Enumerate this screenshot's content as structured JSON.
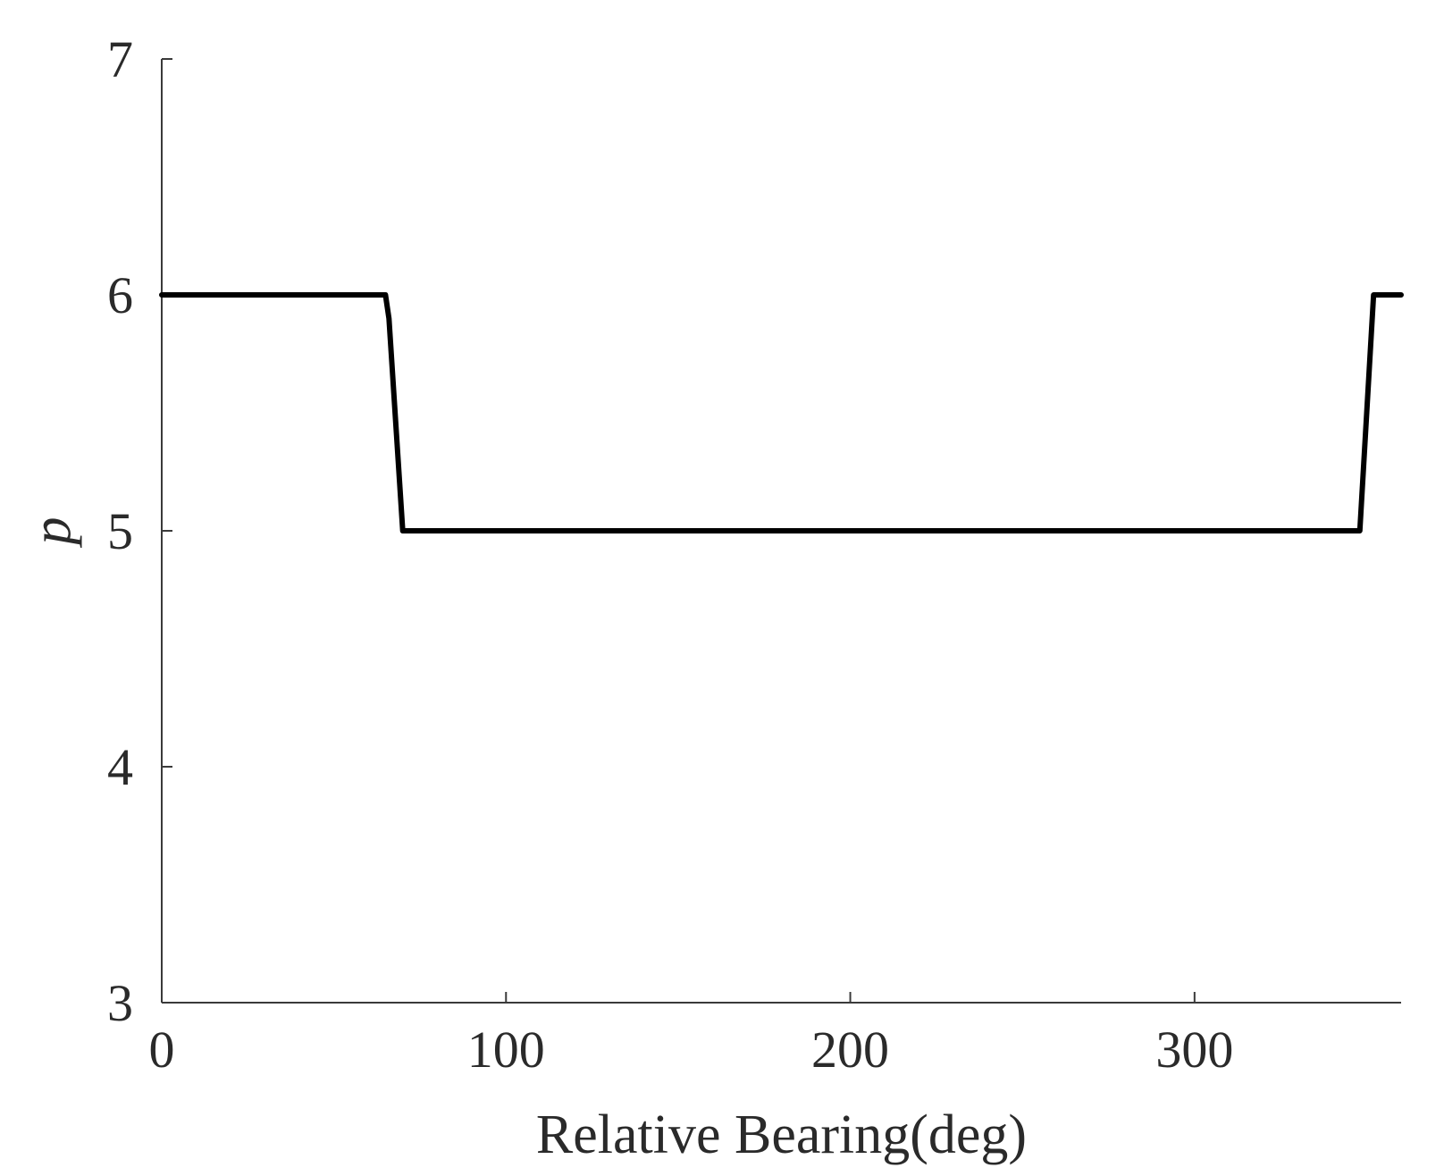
{
  "chart_data": {
    "type": "line",
    "title": "",
    "xlabel": "Relative Bearing(deg)",
    "ylabel": "p",
    "xlim": [
      0,
      360
    ],
    "ylim": [
      3,
      7
    ],
    "xticks": [
      0,
      100,
      200,
      300
    ],
    "yticks": [
      3,
      4,
      5,
      6,
      7
    ],
    "grid": false,
    "colors": {
      "line": "#000000",
      "axis": "#3a3a3a",
      "text": "#2a2a2a"
    },
    "series": [
      {
        "x": [
          0,
          65,
          66,
          70,
          348,
          352,
          360
        ],
        "y": [
          6,
          6,
          5.9,
          5,
          5,
          6,
          6
        ]
      }
    ]
  }
}
